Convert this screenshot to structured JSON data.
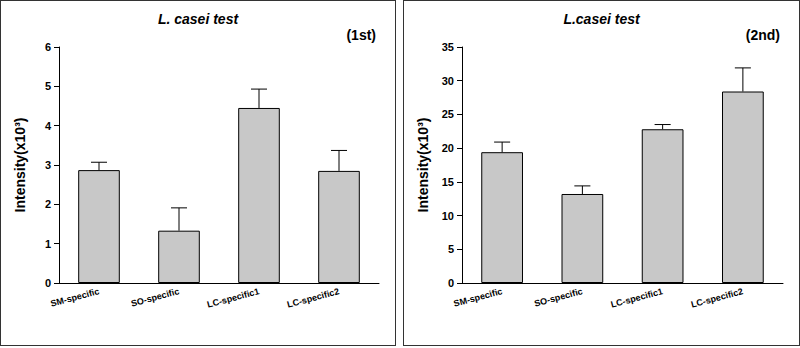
{
  "chart_data": [
    {
      "type": "bar",
      "title": "L. casei test",
      "annotation": "(1st)",
      "y_label": "Intensity(x10³)",
      "categories": [
        "SM-specific",
        "SO-specific",
        "LC-specific1",
        "LC-specific2"
      ],
      "values": [
        2.87,
        1.33,
        4.45,
        2.85
      ],
      "errors": [
        0.2,
        0.58,
        0.48,
        0.52
      ],
      "color": "#c8c8c8",
      "ylim": [
        0,
        6
      ],
      "yticks": [
        0,
        1,
        2,
        3,
        4,
        5,
        6
      ],
      "grid": false
    },
    {
      "type": "bar",
      "title": "L.casei test",
      "annotation": "(2nd)",
      "y_label": "Intensity(x10³)",
      "categories": [
        "SM-specific",
        "SO-specific",
        "LC-specific1",
        "LC-specific2"
      ],
      "values": [
        19.4,
        13.2,
        22.8,
        28.4
      ],
      "errors": [
        1.5,
        1.2,
        0.7,
        3.5
      ],
      "color": "#c8c8c8",
      "ylim": [
        0,
        35
      ],
      "yticks": [
        0,
        5,
        10,
        15,
        20,
        25,
        30,
        35
      ],
      "grid": false
    }
  ]
}
